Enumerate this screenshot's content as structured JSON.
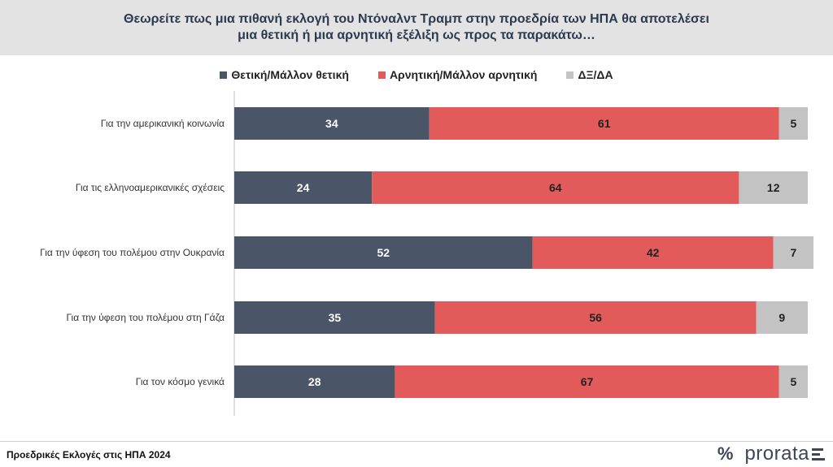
{
  "header": {
    "title": "Θεωρείτε πως μια πιθανή εκλογή του Ντόναλντ Τραμπ στην προεδρία των ΗΠΑ θα αποτελέσει\nμια θετική ή μια αρνητική εξέλιξη ως προς τα παρακάτω…"
  },
  "colors": {
    "positive": "#4a5568",
    "negative": "#e35a5a",
    "dk": "#c3c3c3"
  },
  "chart_data": {
    "type": "bar",
    "orientation": "horizontal",
    "stacked": true,
    "normalized_to": 100,
    "categories": [
      "Για την αμερικανική κοινωνία",
      "Για τις ελληνοαμερικανικές σχέσεις",
      "Για την ύφεση του πολέμου στην Ουκρανία",
      "Για την ύφεση του πολέμου στη Γάζα",
      "Για τον κόσμο γενικά"
    ],
    "series": [
      {
        "name": "Θετική/Μάλλον θετική",
        "values": [
          34,
          24,
          52,
          35,
          28
        ]
      },
      {
        "name": "Αρνητική/Μάλλον αρνητική",
        "values": [
          61,
          64,
          42,
          56,
          67
        ]
      },
      {
        "name": "ΔΞ/ΔΑ",
        "values": [
          5,
          12,
          7,
          9,
          5
        ]
      }
    ],
    "legend_position": "top",
    "grid": false
  },
  "footer": {
    "text": "Προεδρικές Εκλογές στις ΗΠΑ 2024",
    "logo_mark": "%",
    "logo_word": "prorata"
  }
}
